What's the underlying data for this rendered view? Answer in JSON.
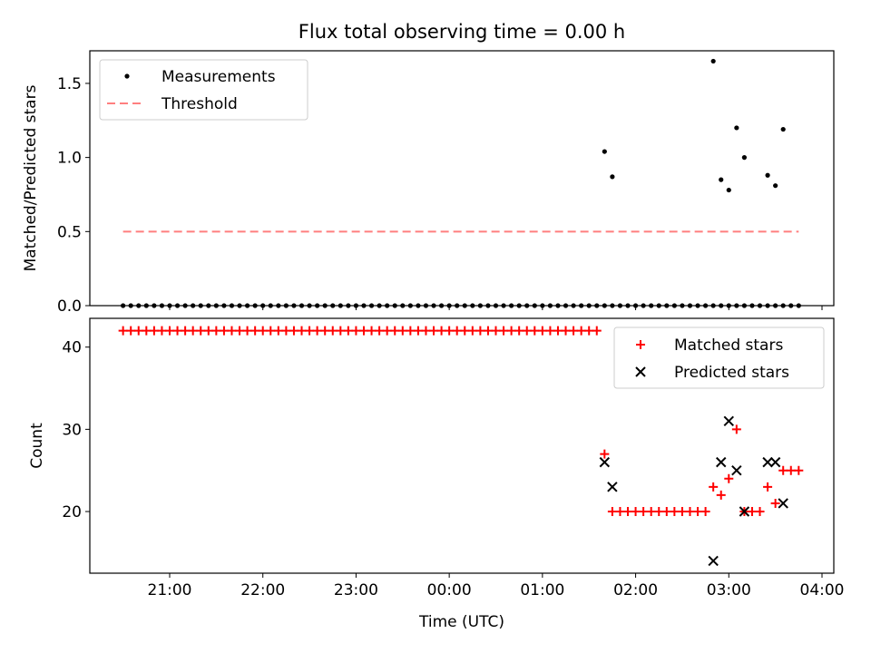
{
  "title": "Flux total observing time = 0.00 h",
  "x_tick_labels": [
    "21:00",
    "22:00",
    "23:00",
    "00:00",
    "01:00",
    "02:00",
    "03:00",
    "04:00"
  ],
  "chart_data": [
    {
      "type": "scatter",
      "ylabel": "Matched/Predicted stars",
      "ylim": [
        0,
        1.72
      ],
      "y_ticks": [
        "0.0",
        "0.5",
        "1.0",
        "1.5"
      ],
      "grid": false,
      "legend_placement": "top-left",
      "series": [
        {
          "name": "Measurements",
          "marker": "dot",
          "color": "#000000",
          "x": [
            "20:30",
            "20:35",
            "20:40",
            "20:45",
            "20:50",
            "20:55",
            "21:00",
            "21:05",
            "21:10",
            "21:15",
            "21:20",
            "21:25",
            "21:30",
            "21:35",
            "21:40",
            "21:45",
            "21:50",
            "21:55",
            "22:00",
            "22:05",
            "22:10",
            "22:15",
            "22:20",
            "22:25",
            "22:30",
            "22:35",
            "22:40",
            "22:45",
            "22:50",
            "22:55",
            "23:00",
            "23:05",
            "23:10",
            "23:15",
            "23:20",
            "23:25",
            "23:30",
            "23:35",
            "23:40",
            "23:45",
            "23:50",
            "23:55",
            "00:00",
            "00:05",
            "00:10",
            "00:15",
            "00:20",
            "00:25",
            "00:30",
            "00:35",
            "00:40",
            "00:45",
            "00:50",
            "00:55",
            "01:00",
            "01:05",
            "01:10",
            "01:15",
            "01:20",
            "01:25",
            "01:30",
            "01:35",
            "01:40",
            "01:45",
            "01:50",
            "01:55",
            "02:00",
            "02:05",
            "02:10",
            "02:15",
            "02:20",
            "02:25",
            "02:30",
            "02:35",
            "02:40",
            "02:45",
            "02:50",
            "02:55",
            "03:00",
            "03:05",
            "03:10",
            "03:15",
            "03:20",
            "03:25",
            "03:30",
            "03:35",
            "03:40",
            "03:45"
          ],
          "y": [
            0,
            0,
            0,
            0,
            0,
            0,
            0,
            0,
            0,
            0,
            0,
            0,
            0,
            0,
            0,
            0,
            0,
            0,
            0,
            0,
            0,
            0,
            0,
            0,
            0,
            0,
            0,
            0,
            0,
            0,
            0,
            0,
            0,
            0,
            0,
            0,
            0,
            0,
            0,
            0,
            0,
            0,
            0,
            0,
            0,
            0,
            0,
            0,
            0,
            0,
            0,
            0,
            0,
            0,
            0,
            0,
            0,
            0,
            0,
            0,
            0,
            0,
            0,
            0,
            0,
            0,
            0,
            0,
            0,
            0,
            0,
            0,
            0,
            0,
            0,
            0,
            0,
            0,
            0,
            0,
            0,
            0,
            0,
            0,
            0,
            0,
            0,
            0
          ]
        },
        {
          "name": "Measurements",
          "marker": "dot",
          "color": "#000000",
          "x": [
            "01:40",
            "01:45",
            "02:50",
            "02:55",
            "03:00",
            "03:05",
            "03:10",
            "03:25",
            "03:30",
            "03:35"
          ],
          "y": [
            1.04,
            0.87,
            1.65,
            0.85,
            0.78,
            1.2,
            1.0,
            0.88,
            0.81,
            1.19
          ]
        },
        {
          "name": "Threshold",
          "marker": "dashed-line",
          "color": "#ff7f7f",
          "x": [
            "20:30",
            "03:45"
          ],
          "y": [
            0.5,
            0.5
          ]
        }
      ]
    },
    {
      "type": "scatter",
      "xlabel": "Time (UTC)",
      "ylabel": "Count",
      "ylim": [
        12.5,
        43.5
      ],
      "y_ticks": [
        "20",
        "30",
        "40"
      ],
      "grid": false,
      "legend_placement": "top-right",
      "series": [
        {
          "name": "Matched stars",
          "marker": "plus",
          "color": "#ff0000",
          "points": [
            [
              "20:30",
              42
            ],
            [
              "20:35",
              42
            ],
            [
              "20:40",
              42
            ],
            [
              "20:45",
              42
            ],
            [
              "20:50",
              42
            ],
            [
              "20:55",
              42
            ],
            [
              "21:00",
              42
            ],
            [
              "21:05",
              42
            ],
            [
              "21:10",
              42
            ],
            [
              "21:15",
              42
            ],
            [
              "21:20",
              42
            ],
            [
              "21:25",
              42
            ],
            [
              "21:30",
              42
            ],
            [
              "21:35",
              42
            ],
            [
              "21:40",
              42
            ],
            [
              "21:45",
              42
            ],
            [
              "21:50",
              42
            ],
            [
              "21:55",
              42
            ],
            [
              "22:00",
              42
            ],
            [
              "22:05",
              42
            ],
            [
              "22:10",
              42
            ],
            [
              "22:15",
              42
            ],
            [
              "22:20",
              42
            ],
            [
              "22:25",
              42
            ],
            [
              "22:30",
              42
            ],
            [
              "22:35",
              42
            ],
            [
              "22:40",
              42
            ],
            [
              "22:45",
              42
            ],
            [
              "22:50",
              42
            ],
            [
              "22:55",
              42
            ],
            [
              "23:00",
              42
            ],
            [
              "23:05",
              42
            ],
            [
              "23:10",
              42
            ],
            [
              "23:15",
              42
            ],
            [
              "23:20",
              42
            ],
            [
              "23:25",
              42
            ],
            [
              "23:30",
              42
            ],
            [
              "23:35",
              42
            ],
            [
              "23:40",
              42
            ],
            [
              "23:45",
              42
            ],
            [
              "23:50",
              42
            ],
            [
              "23:55",
              42
            ],
            [
              "00:00",
              42
            ],
            [
              "00:05",
              42
            ],
            [
              "00:10",
              42
            ],
            [
              "00:15",
              42
            ],
            [
              "00:20",
              42
            ],
            [
              "00:25",
              42
            ],
            [
              "00:30",
              42
            ],
            [
              "00:35",
              42
            ],
            [
              "00:40",
              42
            ],
            [
              "00:45",
              42
            ],
            [
              "00:50",
              42
            ],
            [
              "00:55",
              42
            ],
            [
              "01:00",
              42
            ],
            [
              "01:05",
              42
            ],
            [
              "01:10",
              42
            ],
            [
              "01:15",
              42
            ],
            [
              "01:20",
              42
            ],
            [
              "01:25",
              42
            ],
            [
              "01:30",
              42
            ],
            [
              "01:35",
              42
            ],
            [
              "01:40",
              27
            ],
            [
              "01:45",
              20
            ],
            [
              "01:50",
              20
            ],
            [
              "01:55",
              20
            ],
            [
              "02:00",
              20
            ],
            [
              "02:05",
              20
            ],
            [
              "02:10",
              20
            ],
            [
              "02:15",
              20
            ],
            [
              "02:20",
              20
            ],
            [
              "02:25",
              20
            ],
            [
              "02:30",
              20
            ],
            [
              "02:35",
              20
            ],
            [
              "02:40",
              20
            ],
            [
              "02:45",
              20
            ],
            [
              "02:50",
              23
            ],
            [
              "02:55",
              22
            ],
            [
              "03:00",
              24
            ],
            [
              "03:05",
              30
            ],
            [
              "03:10",
              20
            ],
            [
              "03:15",
              20
            ],
            [
              "03:20",
              20
            ],
            [
              "03:25",
              23
            ],
            [
              "03:30",
              21
            ],
            [
              "03:35",
              25
            ],
            [
              "03:40",
              25
            ],
            [
              "03:45",
              25
            ]
          ]
        },
        {
          "name": "Predicted stars",
          "marker": "x",
          "color": "#000000",
          "points": [
            [
              "01:40",
              26
            ],
            [
              "01:45",
              23
            ],
            [
              "02:50",
              14
            ],
            [
              "02:55",
              26
            ],
            [
              "03:00",
              31
            ],
            [
              "03:05",
              25
            ],
            [
              "03:10",
              20
            ],
            [
              "03:25",
              26
            ],
            [
              "03:30",
              26
            ],
            [
              "03:35",
              21
            ]
          ]
        }
      ]
    }
  ]
}
